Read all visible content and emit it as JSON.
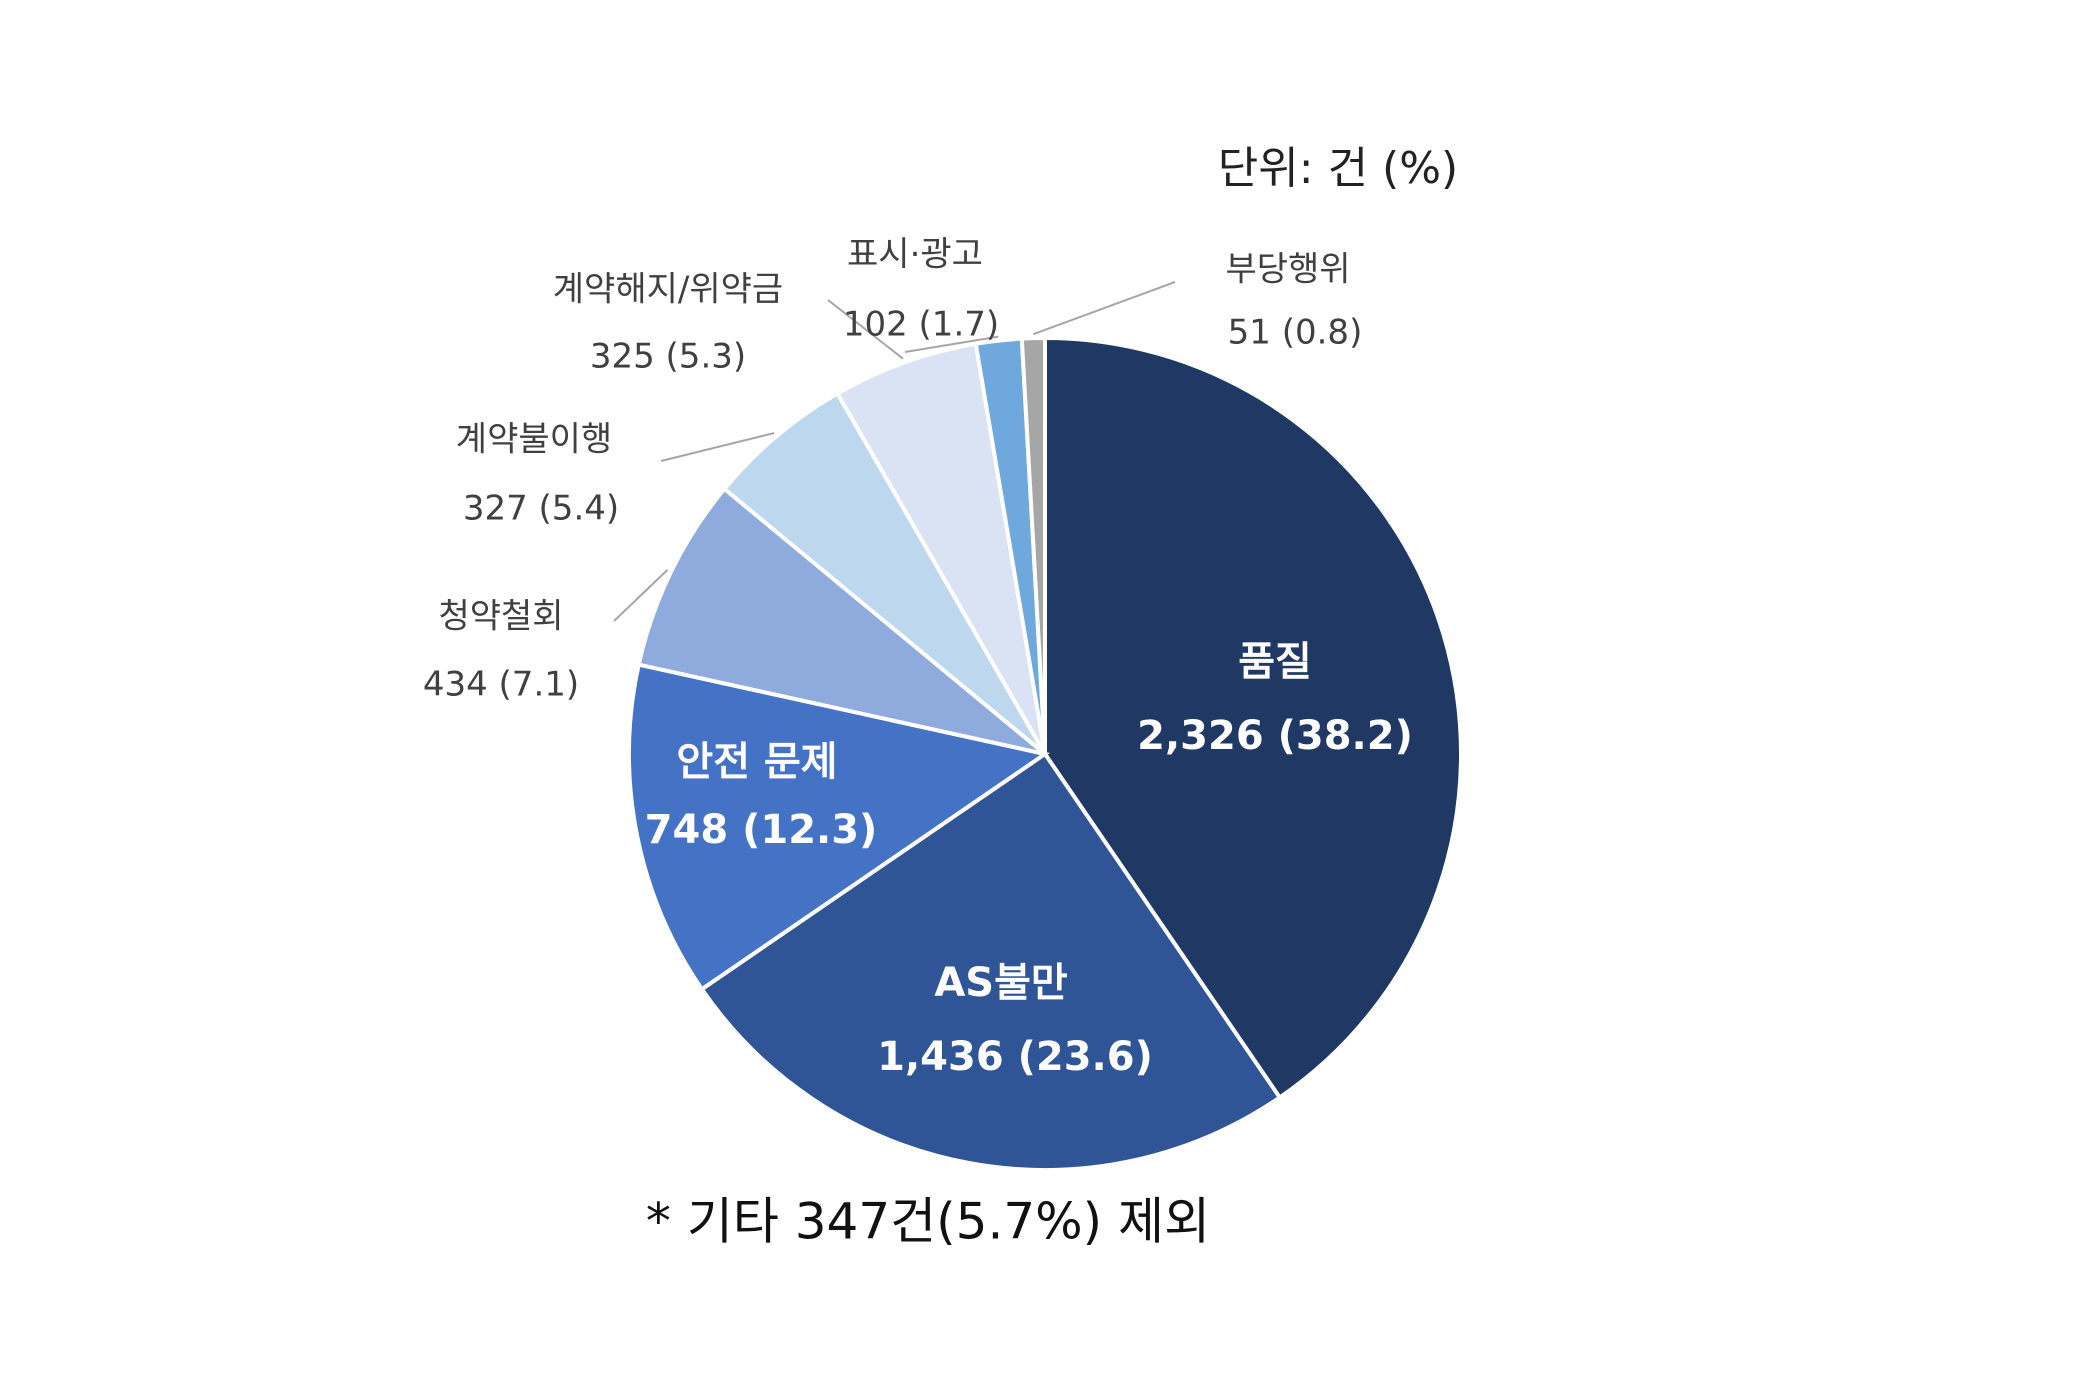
{
  "chart_data": {
    "type": "pie",
    "unit_note": "단위: 건 (%)",
    "footnote": "* 기타 347건(5.7%) 제외",
    "categories": [
      "품질",
      "AS불만",
      "안전 문제",
      "청약철회",
      "계약불이행",
      "계약해지/위약금",
      "표시·광고",
      "부당행위"
    ],
    "values": [
      2326,
      1436,
      748,
      434,
      327,
      325,
      102,
      51
    ],
    "value_labels": [
      "2,326 (38.2)",
      "1,436 (23.6)",
      "748 (12.3)",
      "434 (7.1)",
      "327 (5.4)",
      "325 (5.3)",
      "102 (1.7)",
      "51 (0.8)"
    ],
    "colors": [
      "#203864",
      "#2f5597",
      "#4472c4",
      "#8faadc",
      "#bdd7ee",
      "#dae3f3",
      "#6fa8dc",
      "#a6a6a6"
    ]
  }
}
